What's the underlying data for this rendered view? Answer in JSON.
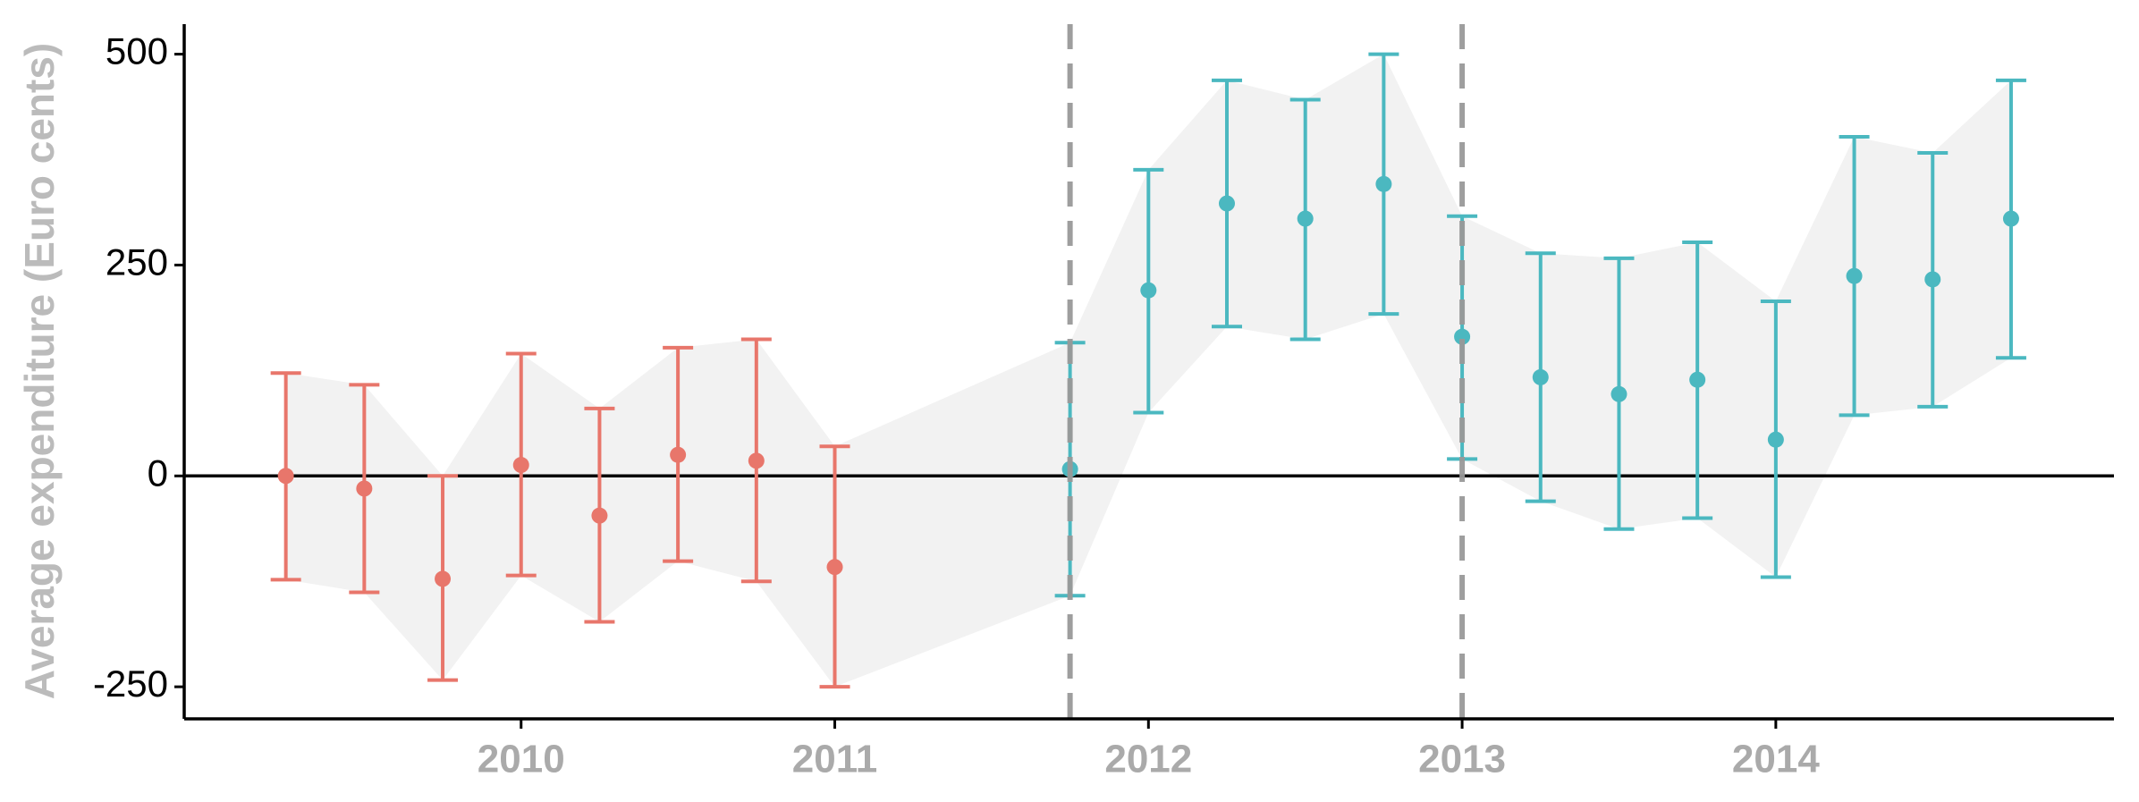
{
  "chart_data": {
    "type": "errorbar",
    "y_label": "Average expenditure (Euro cents)",
    "xlim": [
      2008.926,
      2015.078
    ],
    "xticks": [
      2010,
      2011,
      2012,
      2013,
      2014
    ],
    "ylim": [
      -288,
      535.6
    ],
    "yticks": [
      -250,
      0,
      250,
      500
    ],
    "hline": 0,
    "vlines": [
      2011.75,
      2013
    ],
    "ribbon_color": "#f2f2f2",
    "vline_color": "#999999",
    "series": [
      {
        "color": "#e8766b",
        "x": [
          2009.25,
          2009.5,
          2009.75,
          2010,
          2010.25,
          2010.5,
          2010.75,
          2011
        ],
        "values": [
          0,
          -15,
          -122,
          13,
          -47,
          25,
          18,
          -108
        ],
        "lower": [
          -123,
          -138,
          -242,
          -118,
          -173,
          -101,
          -125,
          -250
        ],
        "upper": [
          122,
          108,
          0,
          145,
          80,
          152,
          162,
          35
        ]
      },
      {
        "color": "#4bb8c0",
        "x": [
          2011.75,
          2012,
          2012.25,
          2012.5,
          2012.75,
          2013,
          2013.25,
          2013.5,
          2013.75,
          2014,
          2014.25,
          2014.5,
          2014.75
        ],
        "values": [
          8,
          220,
          323,
          305,
          346,
          165,
          117,
          97,
          114,
          43,
          237,
          233,
          305
        ],
        "lower": [
          -142,
          75,
          177,
          162,
          192,
          20,
          -30,
          -63,
          -50,
          -120,
          72,
          82,
          140
        ],
        "upper": [
          158,
          363,
          469,
          446,
          500,
          308,
          264,
          258,
          277,
          207,
          402,
          383,
          469
        ]
      }
    ]
  }
}
